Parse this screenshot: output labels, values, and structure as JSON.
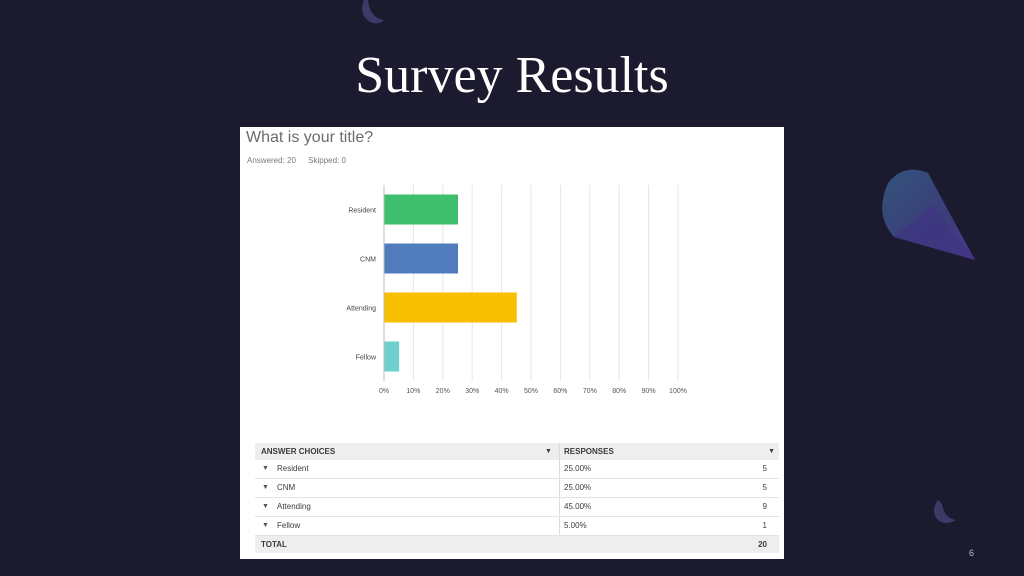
{
  "slide": {
    "title": "Survey Results",
    "page_number": "6"
  },
  "survey": {
    "question": "What is your title?",
    "answered_label": "Answered: 20",
    "skipped_label": "Skipped: 0"
  },
  "chart_data": {
    "type": "bar",
    "orientation": "horizontal",
    "categories": [
      "Resident",
      "CNM",
      "Attending",
      "Fellow"
    ],
    "values": [
      25,
      25,
      45,
      5
    ],
    "colors": [
      "#3dbf6e",
      "#507bbd",
      "#f8be00",
      "#6ecfcd"
    ],
    "xlim": [
      0,
      100
    ],
    "x_ticks": [
      "0%",
      "10%",
      "20%",
      "30%",
      "40%",
      "50%",
      "60%",
      "70%",
      "80%",
      "90%",
      "100%"
    ],
    "grid": true,
    "xlabel": "",
    "ylabel": "",
    "title": ""
  },
  "table": {
    "headers": {
      "choices": "ANSWER CHOICES",
      "responses": "RESPONSES"
    },
    "rows": [
      {
        "choice": "Resident",
        "percent": "25.00%",
        "count": "5"
      },
      {
        "choice": "CNM",
        "percent": "25.00%",
        "count": "5"
      },
      {
        "choice": "Attending",
        "percent": "45.00%",
        "count": "9"
      },
      {
        "choice": "Fellow",
        "percent": "5.00%",
        "count": "1"
      }
    ],
    "total_label": "TOTAL",
    "total_count": "20"
  },
  "colors": {
    "background": "#1b1a2e",
    "deco_shape": "#3b3a6e"
  }
}
